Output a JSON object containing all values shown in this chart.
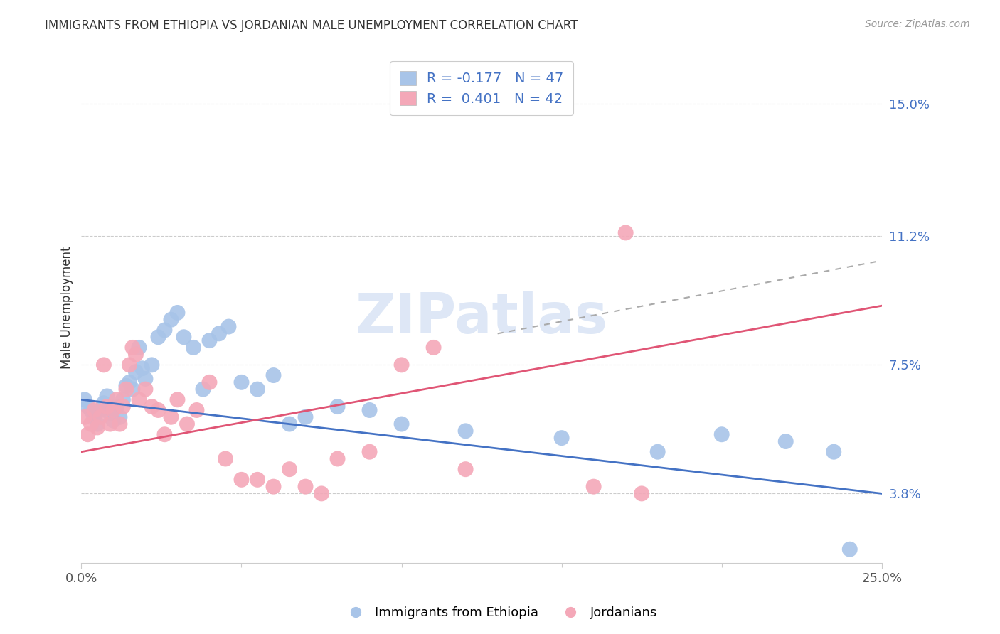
{
  "title": "IMMIGRANTS FROM ETHIOPIA VS JORDANIAN MALE UNEMPLOYMENT CORRELATION CHART",
  "source": "Source: ZipAtlas.com",
  "ylabel": "Male Unemployment",
  "ytick_vals": [
    0.038,
    0.075,
    0.112,
    0.15
  ],
  "ytick_labels": [
    "3.8%",
    "7.5%",
    "11.2%",
    "15.0%"
  ],
  "xtick_vals": [
    0.0,
    0.25
  ],
  "xtick_labels": [
    "0.0%",
    "25.0%"
  ],
  "xmin": 0.0,
  "xmax": 0.25,
  "ymin": 0.018,
  "ymax": 0.165,
  "legend_blue_r": "-0.177",
  "legend_blue_n": "47",
  "legend_pink_r": "0.401",
  "legend_pink_n": "42",
  "blue_scatter_color": "#a8c4e8",
  "pink_scatter_color": "#f4a8b8",
  "blue_line_color": "#4472C4",
  "pink_line_color": "#E05575",
  "watermark_text": "ZIPatlas",
  "watermark_color": "#c8d8f0",
  "blue_line_y0": 0.065,
  "blue_line_y1": 0.038,
  "pink_line_y0": 0.05,
  "pink_line_y1": 0.092,
  "blue_scatter_x": [
    0.001,
    0.002,
    0.003,
    0.004,
    0.004,
    0.005,
    0.006,
    0.007,
    0.008,
    0.009,
    0.01,
    0.011,
    0.012,
    0.013,
    0.014,
    0.015,
    0.016,
    0.017,
    0.018,
    0.019,
    0.02,
    0.022,
    0.024,
    0.026,
    0.028,
    0.03,
    0.032,
    0.035,
    0.038,
    0.04,
    0.043,
    0.046,
    0.05,
    0.055,
    0.06,
    0.065,
    0.07,
    0.08,
    0.09,
    0.1,
    0.12,
    0.15,
    0.18,
    0.2,
    0.22,
    0.235,
    0.24
  ],
  "blue_scatter_y": [
    0.065,
    0.063,
    0.062,
    0.06,
    0.061,
    0.058,
    0.062,
    0.064,
    0.066,
    0.061,
    0.059,
    0.063,
    0.06,
    0.065,
    0.069,
    0.07,
    0.068,
    0.073,
    0.08,
    0.074,
    0.071,
    0.075,
    0.083,
    0.085,
    0.088,
    0.09,
    0.083,
    0.08,
    0.068,
    0.082,
    0.084,
    0.086,
    0.07,
    0.068,
    0.072,
    0.058,
    0.06,
    0.063,
    0.062,
    0.058,
    0.056,
    0.054,
    0.05,
    0.055,
    0.053,
    0.05,
    0.022
  ],
  "pink_scatter_x": [
    0.001,
    0.002,
    0.003,
    0.004,
    0.005,
    0.006,
    0.007,
    0.008,
    0.009,
    0.01,
    0.011,
    0.012,
    0.013,
    0.014,
    0.015,
    0.016,
    0.017,
    0.018,
    0.02,
    0.022,
    0.024,
    0.026,
    0.028,
    0.03,
    0.033,
    0.036,
    0.04,
    0.045,
    0.05,
    0.055,
    0.06,
    0.065,
    0.07,
    0.075,
    0.08,
    0.09,
    0.1,
    0.11,
    0.12,
    0.16,
    0.17,
    0.175
  ],
  "pink_scatter_y": [
    0.06,
    0.055,
    0.058,
    0.062,
    0.057,
    0.06,
    0.075,
    0.063,
    0.058,
    0.062,
    0.065,
    0.058,
    0.063,
    0.068,
    0.075,
    0.08,
    0.078,
    0.065,
    0.068,
    0.063,
    0.062,
    0.055,
    0.06,
    0.065,
    0.058,
    0.062,
    0.07,
    0.048,
    0.042,
    0.042,
    0.04,
    0.045,
    0.04,
    0.038,
    0.048,
    0.05,
    0.075,
    0.08,
    0.045,
    0.04,
    0.113,
    0.038
  ]
}
